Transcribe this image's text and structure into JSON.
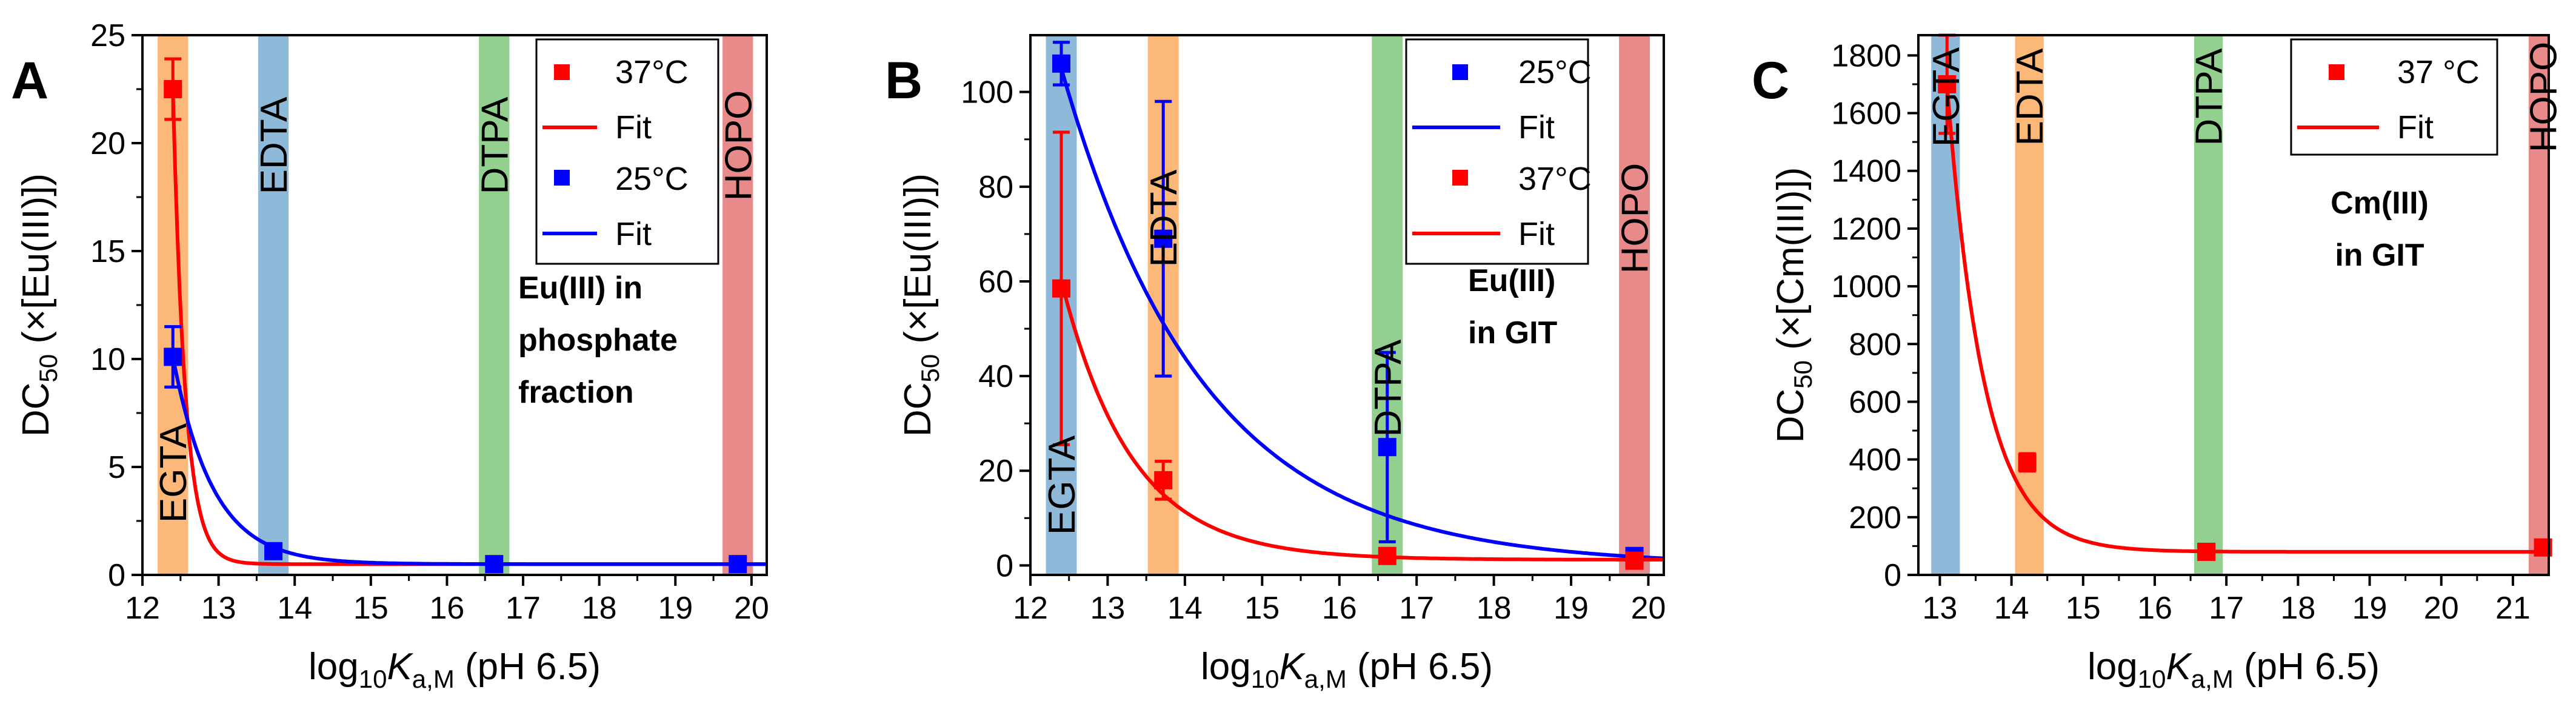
{
  "chart_data": [
    {
      "panel": "A",
      "type": "scatter",
      "title": "",
      "xlabel_parts": {
        "a": "log",
        "b": "10",
        "c": "K",
        "d": "a,M",
        "e": " (pH 6.5)"
      },
      "ylabel_parts": {
        "a": "DC",
        "b": "50",
        "c": " (×[Eu(III)])"
      },
      "xlim": [
        12,
        20.2
      ],
      "ylim": [
        0,
        25
      ],
      "xticks": [
        12,
        13,
        14,
        15,
        16,
        17,
        18,
        19,
        20
      ],
      "yticks": [
        0,
        5,
        10,
        15,
        20,
        25
      ],
      "bands": [
        {
          "name": "EGTA",
          "x0": 12.2,
          "x1": 12.6,
          "color": "#fbb879",
          "label_pos": "low"
        },
        {
          "name": "EDTA",
          "x0": 13.52,
          "x1": 13.92,
          "color": "#8fb9d9",
          "label_pos": "high"
        },
        {
          "name": "DTPA",
          "x0": 16.42,
          "x1": 16.82,
          "color": "#93cf8e",
          "label_pos": "high"
        },
        {
          "name": "HOPO",
          "x0": 19.62,
          "x1": 20.02,
          "color": "#e8898a",
          "label_pos": "high"
        }
      ],
      "series": [
        {
          "name": "37°C",
          "color": "#ff0000",
          "x": [
            12.4
          ],
          "y": [
            22.5
          ],
          "err": [
            1.4
          ],
          "fit": {
            "a": 22.0,
            "c": 0.5,
            "k": 6.2,
            "x0": 12.4
          }
        },
        {
          "name": "25°C",
          "color": "#0000ff",
          "x": [
            12.4,
            13.72,
            16.62,
            19.82
          ],
          "y": [
            10.1,
            1.1,
            0.5,
            0.5
          ],
          "err": [
            1.4,
            0.2,
            0,
            0
          ],
          "fit": {
            "a": 9.6,
            "c": 0.5,
            "k": 1.9,
            "x0": 12.4
          }
        }
      ],
      "legend": [
        "37°C",
        "Fit",
        "25°C",
        "Fit"
      ],
      "annotation": [
        "Eu(III) in",
        "phosphate",
        "fraction"
      ]
    },
    {
      "panel": "B",
      "type": "scatter",
      "title": "",
      "xlabel_parts": {
        "a": "log",
        "b": "10",
        "c": "K",
        "d": "a,M",
        "e": " (pH 6.5)"
      },
      "ylabel_parts": {
        "a": "DC",
        "b": "50",
        "c": " (×[Eu(III)])"
      },
      "xlim": [
        12,
        20.2
      ],
      "ylim": [
        -2,
        112
      ],
      "xticks": [
        12,
        13,
        14,
        15,
        16,
        17,
        18,
        19,
        20
      ],
      "yticks": [
        0,
        20,
        40,
        60,
        80,
        100
      ],
      "bands": [
        {
          "name": "EGTA",
          "x0": 12.2,
          "x1": 12.6,
          "color": "#8fb9d9",
          "label_pos": "low"
        },
        {
          "name": "EDTA",
          "x0": 13.52,
          "x1": 13.92,
          "color": "#fbb879",
          "label_pos": "high"
        },
        {
          "name": "DTPA",
          "x0": 16.42,
          "x1": 16.82,
          "color": "#93cf8e",
          "label_pos": "mid"
        },
        {
          "name": "HOPO",
          "x0": 19.62,
          "x1": 20.02,
          "color": "#e8898a",
          "label_pos": "high"
        }
      ],
      "series": [
        {
          "name": "25°C",
          "color": "#0000ff",
          "x": [
            12.4,
            13.72,
            16.62,
            19.82
          ],
          "y": [
            106,
            69,
            25,
            2
          ],
          "err": [
            4.5,
            29,
            20,
            1.5
          ],
          "fit": {
            "a": 105,
            "c": 0,
            "k": 0.545,
            "x0": 12.4
          }
        },
        {
          "name": "37°C",
          "color": "#ff0000",
          "x": [
            12.4,
            13.72,
            16.62,
            19.82
          ],
          "y": [
            58.5,
            18,
            2,
            1
          ],
          "err": [
            33,
            4,
            1,
            1
          ],
          "fit": {
            "a": 59,
            "c": 1.2,
            "k": 1.1,
            "x0": 12.4
          }
        }
      ],
      "legend": [
        "25°C",
        "Fit",
        "37°C",
        "Fit"
      ],
      "annotation": [
        "Eu(III)",
        "in GIT"
      ]
    },
    {
      "panel": "C",
      "type": "scatter",
      "title": "",
      "xlabel_parts": {
        "a": "log",
        "b": "10",
        "c": "K",
        "d": "a,M",
        "e": " (pH 6.5)"
      },
      "ylabel_parts": {
        "a": "DC",
        "b": "50",
        "c": " (×[Cm(III)])"
      },
      "xlim": [
        12.7,
        21.5
      ],
      "ylim": [
        0,
        1870
      ],
      "xticks": [
        13,
        14,
        15,
        16,
        17,
        18,
        19,
        20,
        21
      ],
      "yticks": [
        0,
        200,
        400,
        600,
        800,
        1000,
        1200,
        1400,
        1600,
        1800
      ],
      "bands": [
        {
          "name": "EGTA",
          "x0": 12.88,
          "x1": 13.28,
          "color": "#8fb9d9",
          "label_pos": "high"
        },
        {
          "name": "EDTA",
          "x0": 14.05,
          "x1": 14.45,
          "color": "#fbb879",
          "label_pos": "high"
        },
        {
          "name": "DTPA",
          "x0": 16.55,
          "x1": 16.95,
          "color": "#93cf8e",
          "label_pos": "high"
        },
        {
          "name": "HOPO",
          "x0": 21.22,
          "x1": 21.62,
          "color": "#e8898a",
          "label_pos": "high"
        }
      ],
      "series": [
        {
          "name": "37 °C",
          "color": "#ff0000",
          "x": [
            13.1,
            14.22,
            16.72,
            21.42
          ],
          "y": [
            1700,
            390,
            80,
            95
          ],
          "err": [
            170,
            30,
            10,
            10
          ],
          "fit": {
            "a": 1620,
            "c": 80,
            "k": 1.95,
            "x0": 13.1
          }
        }
      ],
      "legend": [
        "37 °C",
        "Fit"
      ],
      "annotation": [
        "Cm(III)",
        "in GIT"
      ]
    }
  ]
}
